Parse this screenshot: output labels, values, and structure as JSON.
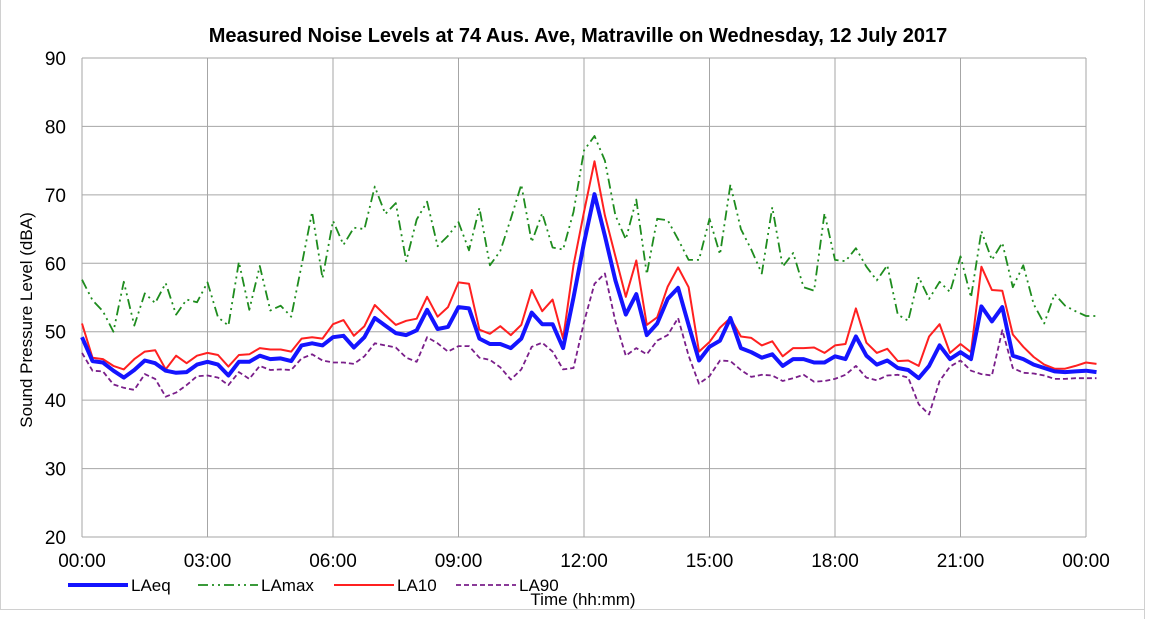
{
  "chart_data": {
    "type": "line",
    "title": "Measured Noise Levels at 74 Aus. Ave, Matraville on Wednesday, 12 July 2017",
    "xlabel": "Time (hh:mm)",
    "ylabel": "Sound Pressure Level (dBA)",
    "ylim": [
      20,
      90
    ],
    "yticks": [
      "20",
      "30",
      "40",
      "50",
      "60",
      "70",
      "80",
      "90"
    ],
    "xticks": [
      "00:00",
      "03:00",
      "06:00",
      "09:00",
      "12:00",
      "15:00",
      "18:00",
      "21:00",
      "00:00"
    ],
    "x_range_hours": [
      0,
      24
    ],
    "interval_minutes": 15,
    "grid": true,
    "legend_position": "bottom-left",
    "colors": {
      "LAeq": "#1414ff",
      "LAmax": "#1e8c1e",
      "LA10": "#ff2020",
      "LA90": "#7a1f8a"
    },
    "series": [
      {
        "name": "LAeq",
        "values": [
          49.2,
          45.7,
          45.5,
          44.3,
          43.3,
          44.4,
          45.8,
          45.4,
          44.3,
          44.0,
          44.1,
          45.2,
          45.6,
          45.2,
          43.6,
          45.6,
          45.6,
          46.5,
          46.0,
          46.1,
          45.7,
          48.0,
          48.3,
          48.0,
          49.2,
          49.4,
          47.7,
          49.2,
          52.0,
          50.9,
          49.8,
          49.5,
          50.2,
          53.2,
          50.4,
          50.7,
          53.6,
          53.4,
          49.0,
          48.2,
          48.2,
          47.6,
          49.0,
          52.8,
          51.1,
          51.1,
          47.6,
          55.0,
          63.0,
          70.1,
          64.0,
          57.5,
          52.5,
          55.5,
          49.5,
          51.2,
          54.8,
          56.4,
          51.0,
          45.8,
          47.8,
          48.7,
          52.0,
          47.6,
          47.0,
          46.2,
          46.7,
          45.0,
          46.0,
          46.0,
          45.5,
          45.5,
          46.4,
          46.0,
          49.3,
          46.5,
          45.2,
          45.8,
          44.7,
          44.4,
          43.2,
          45.0,
          48.0,
          46.0,
          47.0,
          46.0,
          53.7,
          51.5,
          53.6,
          46.5,
          46.0,
          45.2,
          44.7,
          44.2,
          44.1,
          44.2,
          44.3,
          44.1
        ]
      },
      {
        "name": "LAmax",
        "values": [
          57.6,
          54.6,
          53.0,
          50.0,
          57.3,
          50.9,
          55.6,
          54.2,
          57.1,
          52.5,
          54.7,
          54.3,
          57.2,
          52.1,
          50.9,
          60.2,
          53.2,
          59.6,
          53.1,
          53.8,
          52.2,
          59.7,
          67.5,
          57.8,
          66.2,
          62.7,
          65.2,
          65.0,
          71.2,
          67.2,
          68.8,
          60.3,
          66.4,
          69.0,
          62.5,
          64.0,
          66.0,
          61.9,
          68.1,
          59.7,
          61.8,
          66.5,
          71.5,
          63.1,
          67.3,
          62.3,
          62.0,
          67.5,
          76.5,
          78.6,
          75.0,
          67.0,
          63.5,
          69.3,
          58.4,
          66.5,
          66.3,
          63.5,
          60.5,
          60.5,
          66.5,
          61.3,
          71.5,
          65.0,
          62.0,
          58.5,
          68.2,
          59.5,
          61.5,
          56.5,
          56.0,
          67.3,
          60.5,
          60.3,
          62.2,
          59.5,
          57.5,
          59.7,
          52.5,
          51.6,
          58.0,
          54.8,
          57.3,
          55.8,
          61.0,
          55.0,
          64.7,
          60.5,
          63.0,
          56.5,
          59.7,
          54.0,
          51.2,
          55.5,
          53.8,
          53.0,
          52.3,
          52.3
        ]
      },
      {
        "name": "LA10",
        "values": [
          51.2,
          46.2,
          46.0,
          45.0,
          44.5,
          46.0,
          47.1,
          47.3,
          44.5,
          46.5,
          45.4,
          46.5,
          46.9,
          46.6,
          44.9,
          46.6,
          46.7,
          47.6,
          47.4,
          47.4,
          47.1,
          49.0,
          49.2,
          49.0,
          51.1,
          51.7,
          49.4,
          50.8,
          53.9,
          52.4,
          51.0,
          51.6,
          51.9,
          55.1,
          52.2,
          53.6,
          57.2,
          57.0,
          50.3,
          49.7,
          50.8,
          49.5,
          51.0,
          56.1,
          53.0,
          54.7,
          49.0,
          59.7,
          67.5,
          74.9,
          67.0,
          61.0,
          55.1,
          60.4,
          51.0,
          52.1,
          56.6,
          59.4,
          56.5,
          47.1,
          48.5,
          50.6,
          52.0,
          49.3,
          49.1,
          48.0,
          48.6,
          46.4,
          47.6,
          47.6,
          47.7,
          46.9,
          48.0,
          48.2,
          53.4,
          48.4,
          46.9,
          47.5,
          45.7,
          45.8,
          45.0,
          49.3,
          51.1,
          46.9,
          48.2,
          47.0,
          59.5,
          56.1,
          56.0,
          49.6,
          47.8,
          46.3,
          45.2,
          44.6,
          44.6,
          45.0,
          45.5,
          45.3
        ]
      },
      {
        "name": "LA90",
        "values": [
          46.9,
          44.3,
          44.2,
          42.3,
          41.8,
          41.5,
          43.8,
          43.1,
          40.5,
          41.1,
          42.2,
          43.5,
          43.6,
          43.3,
          42.2,
          44.1,
          43.1,
          45.0,
          44.4,
          44.5,
          44.4,
          46.1,
          46.7,
          45.8,
          45.5,
          45.5,
          45.3,
          46.4,
          48.3,
          48.0,
          47.7,
          46.2,
          45.6,
          49.2,
          48.3,
          47.1,
          47.9,
          47.9,
          46.2,
          45.9,
          44.8,
          43.0,
          44.5,
          47.8,
          48.4,
          47.1,
          44.5,
          44.7,
          51.4,
          57.0,
          58.5,
          51.5,
          46.5,
          47.6,
          46.7,
          48.7,
          49.5,
          52.0,
          46.5,
          42.4,
          43.5,
          45.8,
          45.7,
          44.4,
          43.4,
          43.7,
          43.6,
          42.8,
          43.2,
          43.7,
          42.7,
          42.8,
          43.1,
          43.7,
          45.0,
          43.3,
          42.9,
          43.6,
          43.7,
          43.3,
          39.4,
          37.9,
          42.8,
          44.9,
          45.8,
          44.3,
          43.8,
          43.6,
          50.2,
          44.7,
          44.0,
          43.9,
          43.6,
          43.1,
          43.1,
          43.2,
          43.2,
          43.2
        ]
      }
    ]
  }
}
